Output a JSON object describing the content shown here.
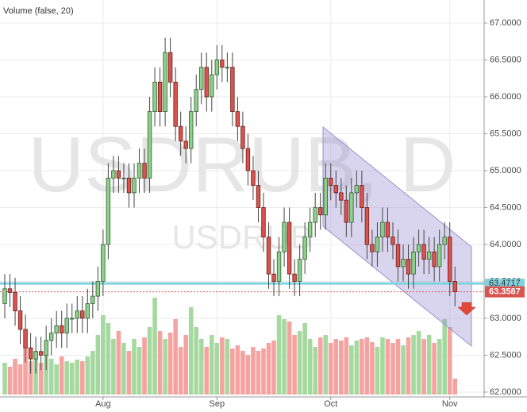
{
  "chart_data": {
    "type": "candlestick",
    "indicator_label": "Volume (false, 20)",
    "watermark": "USDRUB, D",
    "watermark_sub": "USDRUB",
    "up_color": "#8fcf8a",
    "down_color": "#d9534f",
    "volume_up_color": "#a6d9a0",
    "volume_down_color": "#f5a3a0",
    "grid": true,
    "xlim": [
      -0.92,
      92.64
    ],
    "xticks": [
      {
        "value": 19,
        "label": "Aug"
      },
      {
        "value": 41,
        "label": "Sep"
      },
      {
        "value": 63,
        "label": "Oct"
      },
      {
        "value": 86,
        "label": "Nov"
      }
    ],
    "ylim": [
      61.935,
      67.312
    ],
    "yticks": [
      {
        "value": 62,
        "label": "62.0000"
      },
      {
        "value": 62.5,
        "label": "62.5000"
      },
      {
        "value": 63,
        "label": "63.0000"
      },
      {
        "value": 63.5,
        "label": "63.5000"
      },
      {
        "value": 64,
        "label": "64.0000"
      },
      {
        "value": 64.5,
        "label": "64.5000"
      },
      {
        "value": 65,
        "label": "65.0000"
      },
      {
        "value": 65.5,
        "label": "65.5000"
      },
      {
        "value": 66,
        "label": "66.0000"
      },
      {
        "value": 66.5,
        "label": "66.5000"
      },
      {
        "value": 67,
        "label": "67.0000"
      }
    ],
    "support_level": 63.4717,
    "support_color": "#7fd3de",
    "last_price": 63.3587,
    "volume_ylim": [
      0,
      125
    ],
    "open": [
      63.2,
      63.4,
      63.35,
      63.1,
      62.85,
      62.6,
      62.45,
      62.55,
      62.5,
      62.7,
      62.8,
      62.9,
      62.8,
      63.0,
      63.0,
      63.1,
      63.0,
      63.2,
      63.3,
      63.5,
      64.0,
      64.9,
      65.0,
      64.9,
      64.9,
      64.7,
      64.9,
      65.1,
      64.9,
      65.8,
      66.2,
      65.8,
      66.6,
      66.2,
      65.6,
      65.4,
      65.3,
      65.8,
      66.1,
      66.4,
      66.0,
      66.3,
      66.5,
      66.4,
      66.4,
      65.8,
      65.6,
      65.3,
      65.0,
      64.8,
      64.5,
      64.1,
      63.6,
      63.5,
      63.9,
      64.3,
      63.6,
      63.5,
      63.8,
      64.1,
      64.3,
      64.5,
      64.4,
      64.9,
      64.8,
      64.7,
      64.6,
      64.3,
      64.7,
      64.8,
      64.5,
      64.0,
      63.9,
      64.1,
      64.3,
      64.1,
      64.0,
      63.7,
      63.8,
      63.6,
      63.9,
      64.0,
      63.8,
      63.9,
      63.7,
      64.0,
      64.1,
      63.5
    ],
    "high": [
      63.6,
      63.6,
      63.55,
      63.3,
      63.05,
      62.8,
      62.75,
      62.75,
      62.9,
      63.0,
      63.1,
      63.1,
      63.2,
      63.2,
      63.3,
      63.3,
      63.4,
      63.5,
      63.7,
      64.2,
      65.1,
      65.2,
      65.2,
      65.1,
      65.1,
      65.1,
      65.3,
      65.3,
      66.0,
      66.4,
      66.4,
      66.8,
      66.8,
      66.4,
      65.8,
      65.6,
      66.0,
      66.3,
      66.6,
      66.6,
      66.5,
      66.7,
      66.7,
      66.6,
      66.6,
      66.0,
      65.8,
      65.5,
      65.2,
      65.0,
      64.7,
      64.3,
      63.8,
      64.1,
      64.5,
      64.5,
      63.8,
      64.0,
      64.3,
      64.5,
      64.7,
      64.7,
      65.1,
      65.1,
      65.0,
      64.9,
      64.8,
      64.9,
      65.0,
      65.0,
      64.7,
      64.2,
      64.3,
      64.5,
      64.5,
      64.3,
      64.2,
      64.0,
      64.0,
      64.1,
      64.2,
      64.2,
      64.1,
      64.1,
      64.2,
      64.3,
      64.3,
      63.7
    ],
    "low": [
      63.0,
      63.15,
      62.9,
      62.65,
      62.4,
      62.25,
      62.25,
      62.3,
      62.3,
      62.5,
      62.6,
      62.6,
      62.6,
      62.8,
      62.8,
      62.8,
      62.8,
      63.0,
      63.1,
      63.3,
      63.8,
      64.7,
      64.7,
      64.7,
      64.5,
      64.5,
      64.7,
      64.7,
      64.7,
      65.6,
      65.6,
      65.6,
      66.0,
      65.4,
      65.2,
      65.1,
      65.1,
      65.6,
      65.9,
      65.8,
      65.8,
      66.1,
      66.2,
      66.2,
      65.6,
      65.4,
      65.1,
      64.8,
      64.6,
      64.3,
      63.9,
      63.4,
      63.3,
      63.3,
      63.7,
      63.4,
      63.3,
      63.3,
      63.6,
      63.9,
      64.1,
      64.2,
      64.2,
      64.6,
      64.5,
      64.4,
      64.1,
      64.1,
      64.5,
      64.3,
      63.8,
      63.7,
      63.7,
      63.9,
      63.9,
      63.8,
      63.5,
      63.5,
      63.4,
      63.4,
      63.7,
      63.6,
      63.6,
      63.5,
      63.5,
      63.8,
      63.3,
      63.16
    ],
    "close": [
      63.4,
      63.35,
      63.1,
      62.85,
      62.6,
      62.45,
      62.55,
      62.5,
      62.7,
      62.8,
      62.9,
      62.8,
      63.0,
      63.0,
      63.1,
      63.0,
      63.2,
      63.3,
      63.5,
      64.0,
      64.9,
      65.0,
      64.9,
      64.9,
      64.7,
      64.9,
      65.1,
      64.9,
      65.8,
      66.2,
      65.8,
      66.6,
      66.2,
      65.6,
      65.4,
      65.3,
      65.8,
      66.1,
      66.4,
      66.0,
      66.3,
      66.5,
      66.4,
      66.4,
      65.8,
      65.6,
      65.3,
      65.0,
      64.8,
      64.5,
      64.1,
      63.6,
      63.5,
      63.9,
      64.3,
      63.6,
      63.5,
      63.8,
      64.1,
      64.3,
      64.5,
      64.4,
      64.9,
      64.8,
      64.7,
      64.6,
      64.3,
      64.7,
      64.8,
      64.5,
      64.0,
      63.9,
      64.1,
      64.3,
      64.1,
      64.0,
      63.7,
      63.8,
      63.6,
      63.9,
      64.0,
      63.8,
      63.9,
      63.7,
      64.0,
      64.1,
      63.5,
      63.36
    ],
    "volume": [
      40,
      35,
      45,
      38,
      60,
      42,
      55,
      40,
      50,
      45,
      38,
      48,
      42,
      40,
      44,
      42,
      48,
      55,
      75,
      100,
      90,
      70,
      80,
      65,
      55,
      70,
      60,
      72,
      85,
      122,
      80,
      70,
      78,
      95,
      60,
      75,
      110,
      85,
      70,
      60,
      75,
      65,
      72,
      70,
      58,
      62,
      55,
      50,
      60,
      55,
      58,
      65,
      68,
      100,
      95,
      92,
      75,
      80,
      90,
      70,
      60,
      72,
      75,
      65,
      70,
      68,
      72,
      62,
      68,
      70,
      72,
      66,
      60,
      72,
      70,
      65,
      70,
      62,
      72,
      75,
      80,
      70,
      75,
      65,
      70,
      95,
      85,
      20
    ]
  }
}
